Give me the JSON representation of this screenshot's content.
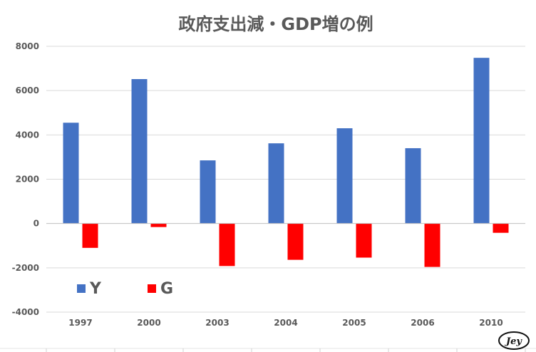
{
  "chart_data": {
    "type": "bar",
    "title": "政府支出減・GDP増の例",
    "categories": [
      "1997",
      "2000",
      "2003",
      "2004",
      "2005",
      "2006",
      "2010"
    ],
    "series": [
      {
        "name": "Y",
        "color": "#4472C4",
        "values": [
          4550,
          6520,
          2850,
          3620,
          4300,
          3400,
          7480
        ]
      },
      {
        "name": "G",
        "color": "#FF0000",
        "values": [
          -1100,
          -160,
          -1920,
          -1640,
          -1540,
          -1960,
          -420
        ]
      }
    ],
    "ylim": [
      -4000,
      8000
    ],
    "yticks": [
      8000,
      6000,
      4000,
      2000,
      0,
      -2000,
      -4000
    ],
    "grid": true,
    "legend_position": "bottom-left",
    "xlabel": "",
    "ylabel": ""
  },
  "logo": {
    "text": "Jey"
  }
}
